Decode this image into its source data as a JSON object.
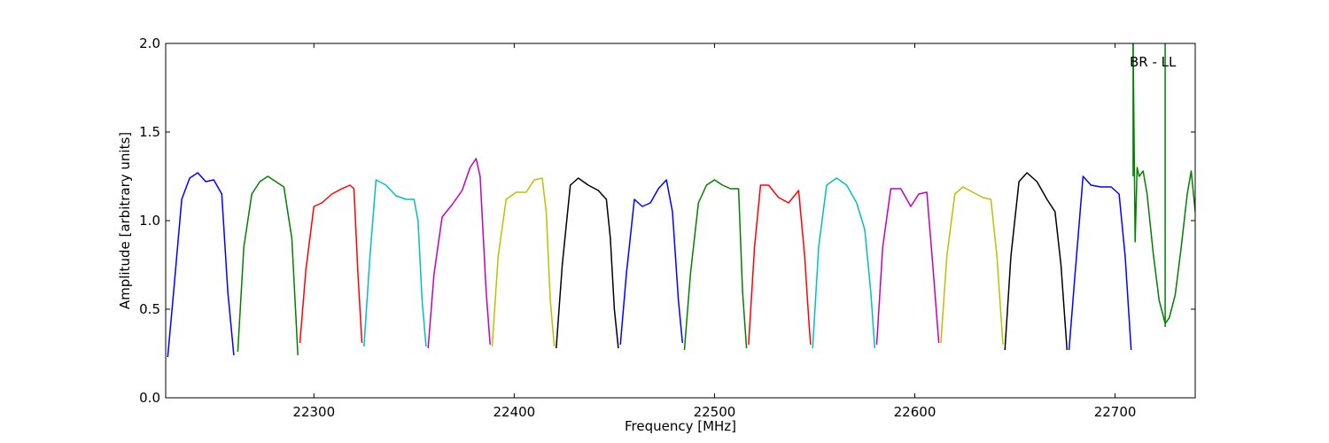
{
  "chart_data": {
    "type": "line",
    "xlabel": "Frequency [MHz]",
    "ylabel": "Amplitude [arbitrary units]",
    "xlim": [
      22226,
      22740
    ],
    "ylim": [
      0.0,
      2.0
    ],
    "x_ticks": [
      22300,
      22400,
      22500,
      22600,
      22700
    ],
    "y_ticks": [
      0.0,
      0.5,
      1.0,
      1.5,
      2.0
    ],
    "y_tick_labels": [
      "0.0",
      "0.5",
      "1.0",
      "1.5",
      "2.0"
    ],
    "grid": false,
    "annotation": "BR - LL",
    "series": [
      {
        "color": "#0000ff",
        "x": [
          22227,
          22230,
          22234,
          22238,
          22242,
          22246,
          22250,
          22254,
          22257,
          22260
        ],
        "y": [
          0.23,
          0.6,
          1.12,
          1.24,
          1.27,
          1.22,
          1.23,
          1.15,
          0.6,
          0.24
        ]
      },
      {
        "color": "#008000",
        "x": [
          22262,
          22265,
          22269,
          22273,
          22277,
          22281,
          22285,
          22289,
          22292
        ],
        "y": [
          0.26,
          0.85,
          1.15,
          1.22,
          1.25,
          1.22,
          1.19,
          0.9,
          0.24
        ]
      },
      {
        "color": "#ff0000",
        "x": [
          22293,
          22296,
          22300,
          22304,
          22309,
          22314,
          22318,
          22320,
          22322,
          22324
        ],
        "y": [
          0.31,
          0.72,
          1.08,
          1.1,
          1.15,
          1.18,
          1.2,
          1.18,
          0.7,
          0.31
        ]
      },
      {
        "color": "#00bfbf",
        "x": [
          22325,
          22328,
          22331,
          22336,
          22341,
          22346,
          22350,
          22352,
          22354,
          22356
        ],
        "y": [
          0.29,
          0.8,
          1.23,
          1.2,
          1.14,
          1.12,
          1.12,
          1.0,
          0.55,
          0.29
        ]
      },
      {
        "color": "#bf00bf",
        "x": [
          22357,
          22360,
          22364,
          22369,
          22374,
          22378,
          22381,
          22383,
          22386,
          22388
        ],
        "y": [
          0.28,
          0.7,
          1.02,
          1.09,
          1.17,
          1.3,
          1.35,
          1.25,
          0.6,
          0.3
        ]
      },
      {
        "color": "#bfbf00",
        "x": [
          22389,
          22392,
          22396,
          22401,
          22406,
          22410,
          22414,
          22416,
          22418,
          22420
        ],
        "y": [
          0.29,
          0.8,
          1.12,
          1.16,
          1.16,
          1.23,
          1.24,
          1.05,
          0.55,
          0.29
        ]
      },
      {
        "color": "#000000",
        "x": [
          22421,
          22424,
          22428,
          22432,
          22437,
          22442,
          22446,
          22448,
          22450,
          22452
        ],
        "y": [
          0.28,
          0.75,
          1.2,
          1.24,
          1.2,
          1.17,
          1.12,
          0.9,
          0.5,
          0.28
        ]
      },
      {
        "color": "#0000ff",
        "x": [
          22453,
          22456,
          22460,
          22464,
          22468,
          22472,
          22476,
          22479,
          22482,
          22484
        ],
        "y": [
          0.3,
          0.7,
          1.12,
          1.08,
          1.1,
          1.18,
          1.23,
          1.05,
          0.55,
          0.31
        ]
      },
      {
        "color": "#008000",
        "x": [
          22485,
          22488,
          22492,
          22496,
          22500,
          22504,
          22508,
          22512,
          22514,
          22516
        ],
        "y": [
          0.27,
          0.7,
          1.1,
          1.2,
          1.23,
          1.2,
          1.18,
          1.18,
          0.6,
          0.28
        ]
      },
      {
        "color": "#ff0000",
        "x": [
          22517,
          22520,
          22523,
          22527,
          22532,
          22537,
          22542,
          22545,
          22547,
          22548
        ],
        "y": [
          0.3,
          0.85,
          1.2,
          1.2,
          1.13,
          1.1,
          1.17,
          0.8,
          0.45,
          0.3
        ]
      },
      {
        "color": "#00bfbf",
        "x": [
          22549,
          22552,
          22556,
          22561,
          22566,
          22571,
          22575,
          22578,
          22580
        ],
        "y": [
          0.28,
          0.85,
          1.2,
          1.24,
          1.2,
          1.1,
          0.95,
          0.6,
          0.28
        ]
      },
      {
        "color": "#bf00bf",
        "x": [
          22581,
          22584,
          22588,
          22593,
          22598,
          22602,
          22606,
          22609,
          22612
        ],
        "y": [
          0.3,
          0.85,
          1.18,
          1.18,
          1.08,
          1.15,
          1.16,
          0.75,
          0.31
        ]
      },
      {
        "color": "#bfbf00",
        "x": [
          22613,
          22616,
          22620,
          22624,
          22629,
          22634,
          22638,
          22641,
          22644
        ],
        "y": [
          0.31,
          0.8,
          1.15,
          1.19,
          1.16,
          1.13,
          1.12,
          0.8,
          0.3
        ]
      },
      {
        "color": "#000000",
        "x": [
          22645,
          22648,
          22652,
          22656,
          22661,
          22666,
          22670,
          22673,
          22676
        ],
        "y": [
          0.27,
          0.8,
          1.22,
          1.27,
          1.22,
          1.12,
          1.05,
          0.75,
          0.27
        ]
      },
      {
        "color": "#0000ff",
        "x": [
          22677,
          22680,
          22684,
          22688,
          22693,
          22698,
          22702,
          22705,
          22708
        ],
        "y": [
          0.27,
          0.7,
          1.25,
          1.2,
          1.19,
          1.19,
          1.15,
          0.8,
          0.27
        ]
      },
      {
        "color": "#008000",
        "x": [
          22709,
          22710,
          22711,
          22712,
          22714,
          22716,
          22719,
          22722,
          22725,
          22727,
          22730,
          22733,
          22736,
          22738,
          22740
        ],
        "y": [
          2.0,
          0.88,
          1.3,
          1.25,
          1.28,
          1.15,
          0.82,
          0.55,
          0.42,
          0.45,
          0.58,
          0.85,
          1.15,
          1.28,
          1.05
        ]
      }
    ],
    "spikes": [
      {
        "color": "#008000",
        "x": 22709,
        "y": [
          1.25,
          2.0
        ]
      },
      {
        "color": "#008000",
        "x": 22725,
        "y": [
          0.4,
          2.0
        ]
      }
    ]
  }
}
